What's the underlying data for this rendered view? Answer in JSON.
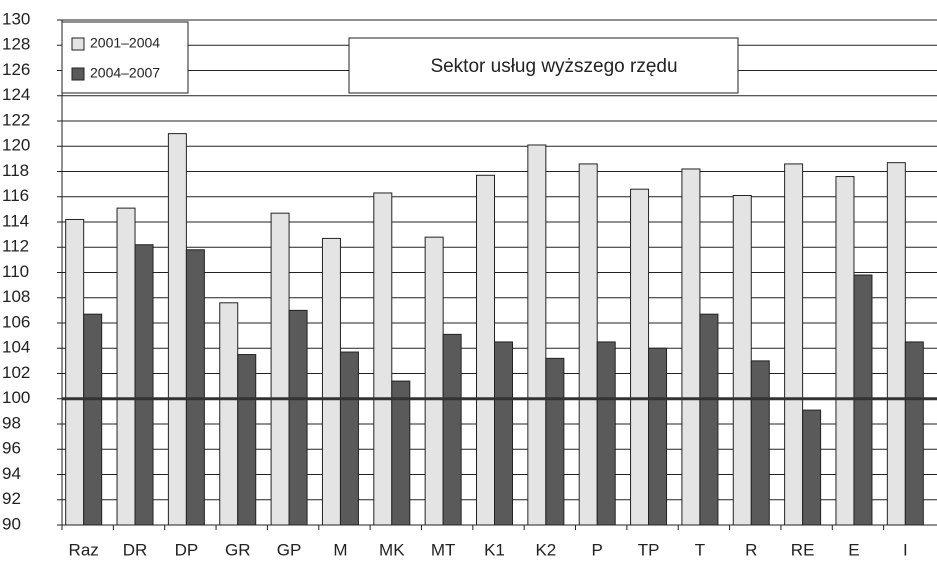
{
  "chart_data": {
    "type": "bar",
    "title": "Sektor usług wyższego rzędu",
    "categories": [
      "Raz",
      "DR",
      "DP",
      "GR",
      "GP",
      "M",
      "MK",
      "MT",
      "K1",
      "K2",
      "P",
      "TP",
      "T",
      "R",
      "RE",
      "E",
      "I"
    ],
    "series": [
      {
        "name": "2001–2004",
        "color": "#e4e4e4",
        "values": [
          114.2,
          115.1,
          121.0,
          107.6,
          114.7,
          112.7,
          116.3,
          112.8,
          117.7,
          120.1,
          118.6,
          116.6,
          118.2,
          116.1,
          118.6,
          117.6,
          118.7
        ]
      },
      {
        "name": "2004–2007",
        "color": "#5a5a5a",
        "values": [
          106.7,
          112.2,
          111.8,
          103.5,
          107.0,
          103.7,
          101.4,
          105.1,
          104.5,
          103.2,
          104.5,
          104.0,
          106.7,
          103.0,
          99.1,
          109.8,
          104.5
        ]
      }
    ],
    "ylim": [
      90,
      130
    ],
    "yticks": [
      90,
      92,
      94,
      96,
      98,
      100,
      102,
      104,
      106,
      108,
      110,
      112,
      114,
      116,
      118,
      120,
      122,
      124,
      126,
      128,
      130
    ],
    "grid": true,
    "reference_line": 100,
    "legend": "top-left"
  }
}
